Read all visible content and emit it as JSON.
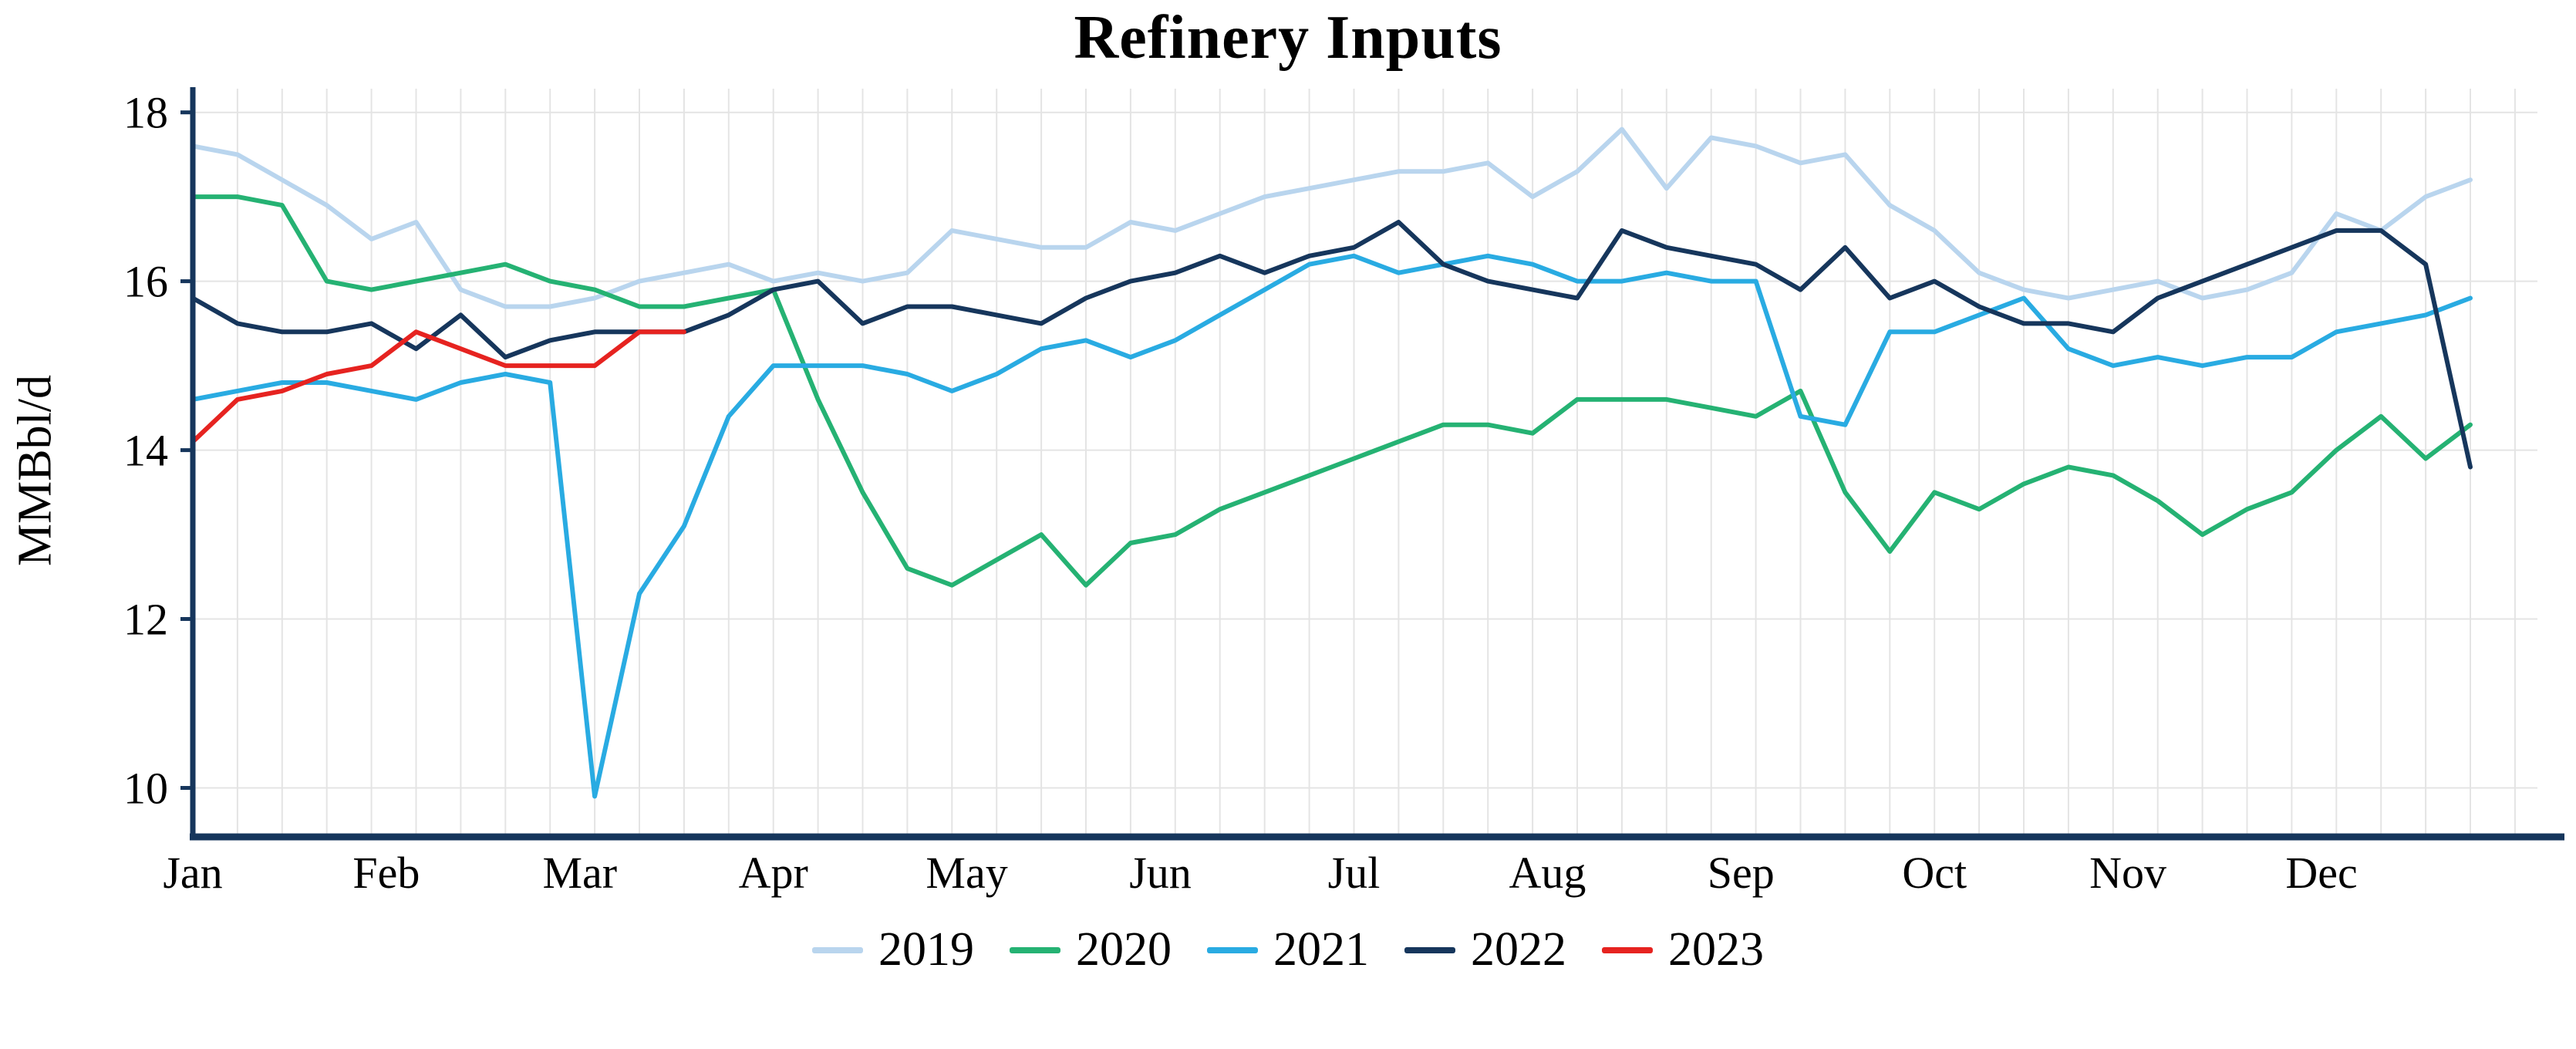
{
  "chart_data": {
    "type": "line",
    "title": "Refinery Inputs",
    "ylabel": "MMBbl/d",
    "xlabel": "",
    "x_unit": "week-of-year",
    "weeks_per_year": 52,
    "x_tick_labels": [
      "Jan",
      "Feb",
      "Mar",
      "Apr",
      "May",
      "Jun",
      "Jul",
      "Aug",
      "Sep",
      "Oct",
      "Nov",
      "Dec"
    ],
    "y_ticks": [
      10,
      12,
      14,
      16,
      18
    ],
    "ylim": [
      9.42,
      18.28
    ],
    "grid": true,
    "legend_position": "bottom",
    "axis_color": "#16365c",
    "grid_color": "#e4e4e4",
    "background_color": "#ffffff",
    "series": [
      {
        "name": "2019",
        "color": "#b9d5ee",
        "values": [
          17.6,
          17.5,
          17.2,
          16.9,
          16.5,
          16.7,
          15.9,
          15.7,
          15.7,
          15.8,
          16.0,
          16.1,
          16.2,
          16.0,
          16.1,
          16.0,
          16.1,
          16.6,
          16.5,
          16.4,
          16.4,
          16.7,
          16.6,
          16.8,
          17.0,
          17.1,
          17.2,
          17.3,
          17.3,
          17.4,
          17.0,
          17.3,
          17.8,
          17.1,
          17.7,
          17.6,
          17.4,
          17.5,
          16.9,
          16.6,
          16.1,
          15.9,
          15.8,
          15.9,
          16.0,
          15.8,
          15.9,
          16.1,
          16.8,
          16.6,
          17.0,
          17.2
        ]
      },
      {
        "name": "2020",
        "color": "#25b273",
        "values": [
          17.0,
          17.0,
          16.9,
          16.0,
          15.9,
          16.0,
          16.1,
          16.2,
          16.0,
          15.9,
          15.7,
          15.7,
          15.8,
          15.9,
          14.6,
          13.5,
          12.6,
          12.4,
          12.7,
          13.0,
          12.4,
          12.9,
          13.0,
          13.3,
          13.5,
          13.7,
          13.9,
          14.1,
          14.3,
          14.3,
          14.2,
          14.6,
          14.6,
          14.6,
          14.5,
          14.4,
          14.7,
          13.5,
          12.8,
          13.5,
          13.3,
          13.6,
          13.8,
          13.7,
          13.4,
          13.0,
          13.3,
          13.5,
          14.0,
          14.4,
          13.9,
          14.3
        ]
      },
      {
        "name": "2021",
        "color": "#29abe2",
        "values": [
          14.6,
          14.7,
          14.8,
          14.8,
          14.7,
          14.6,
          14.8,
          14.9,
          14.8,
          9.9,
          12.3,
          13.1,
          14.4,
          15.0,
          15.0,
          15.0,
          14.9,
          14.7,
          14.9,
          15.2,
          15.3,
          15.1,
          15.3,
          15.6,
          15.9,
          16.2,
          16.3,
          16.1,
          16.2,
          16.3,
          16.2,
          16.0,
          16.0,
          16.1,
          16.0,
          16.0,
          14.4,
          14.3,
          15.4,
          15.4,
          15.6,
          15.8,
          15.2,
          15.0,
          15.1,
          15.0,
          15.1,
          15.1,
          15.4,
          15.5,
          15.6,
          15.8
        ]
      },
      {
        "name": "2022",
        "color": "#16365c",
        "values": [
          15.8,
          15.5,
          15.4,
          15.4,
          15.5,
          15.2,
          15.6,
          15.1,
          15.3,
          15.4,
          15.4,
          15.4,
          15.6,
          15.9,
          16.0,
          15.5,
          15.7,
          15.7,
          15.6,
          15.5,
          15.8,
          16.0,
          16.1,
          16.3,
          16.1,
          16.3,
          16.4,
          16.7,
          16.2,
          16.0,
          15.9,
          15.8,
          16.6,
          16.4,
          16.3,
          16.2,
          15.9,
          16.4,
          15.8,
          16.0,
          15.7,
          15.5,
          15.5,
          15.4,
          15.8,
          16.0,
          16.2,
          16.4,
          16.6,
          16.6,
          16.2,
          13.8
        ]
      },
      {
        "name": "2023",
        "color": "#e62320",
        "values": [
          14.1,
          14.6,
          14.7,
          14.9,
          15.0,
          15.4,
          15.2,
          15.0,
          15.0,
          15.0,
          15.4,
          15.4
        ]
      }
    ]
  }
}
